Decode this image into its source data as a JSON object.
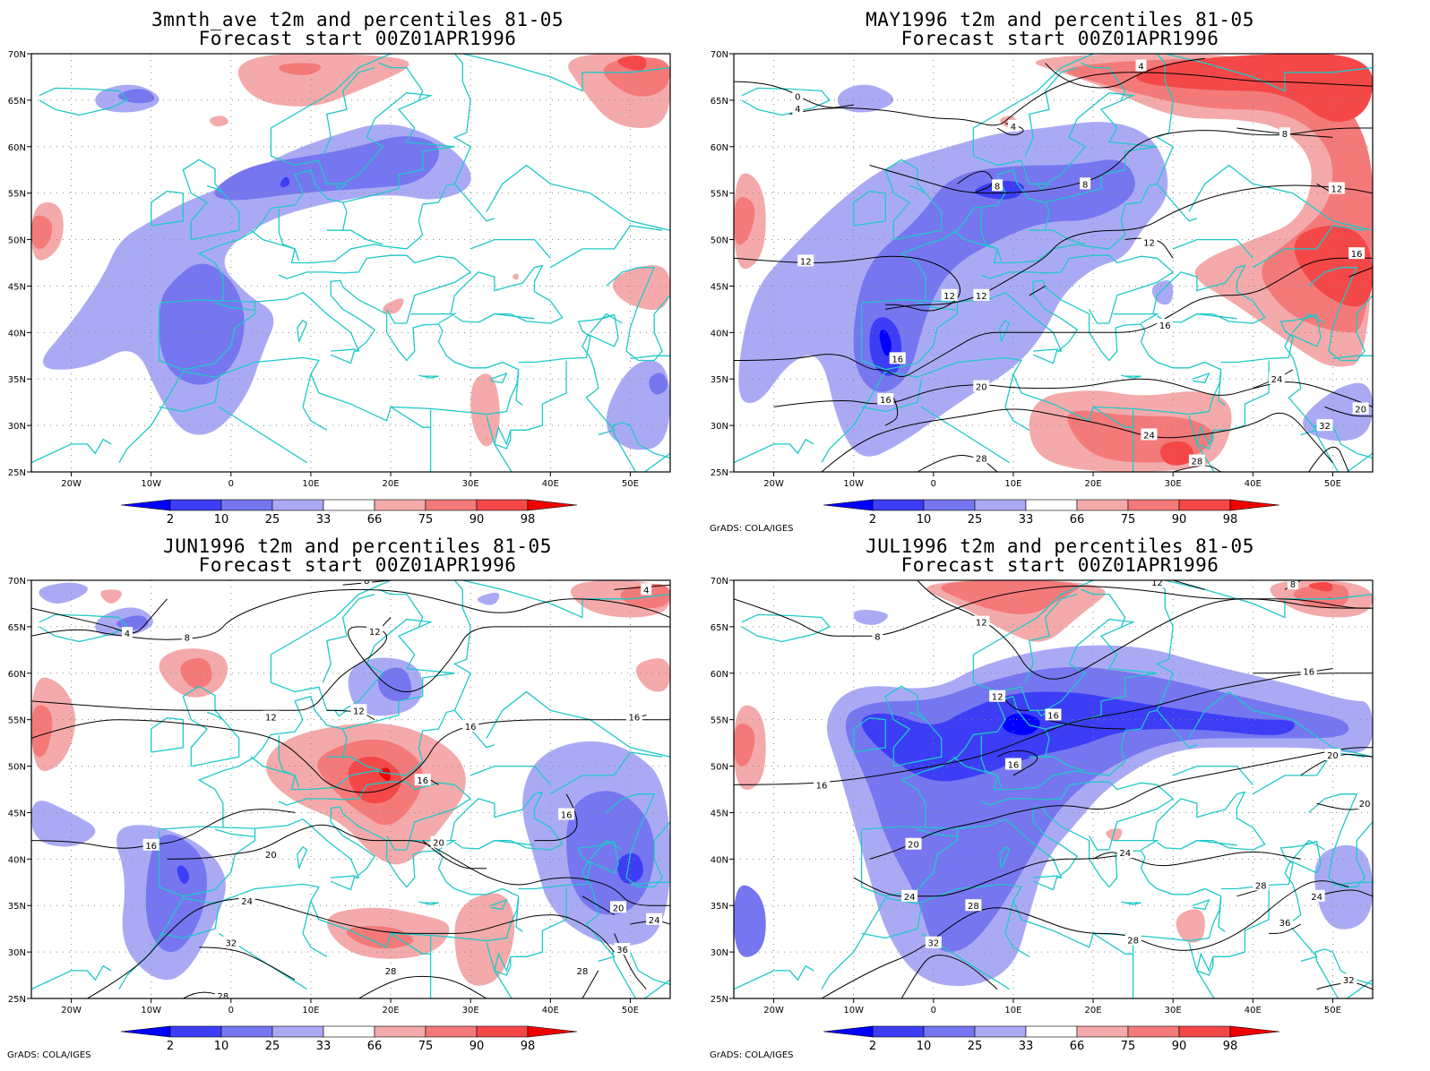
{
  "colors": {
    "blue_2": "#0000ff",
    "blue_10": "#3d3df5",
    "blue_25": "#7676f0",
    "blue_33": "#aaaaf4",
    "red_66": "#f4aaaa",
    "red_75": "#f47a7a",
    "red_90": "#f44848",
    "red_98": "#f00000",
    "coast": "#1fc8c8",
    "contour": "#000000"
  },
  "colorbar": {
    "labels": [
      "2",
      "10",
      "25",
      "33",
      "66",
      "75",
      "90",
      "98"
    ]
  },
  "axes": {
    "x_ticks": [
      "20W",
      "10W",
      "0",
      "10E",
      "20E",
      "30E",
      "40E",
      "50E"
    ],
    "y_ticks": [
      "70N",
      "65N",
      "60N",
      "55N",
      "50N",
      "45N",
      "40N",
      "35N",
      "30N",
      "25N"
    ]
  },
  "panels": [
    {
      "id": "p1",
      "title_line1": "3mnth_ave t2m and percentiles 81-05",
      "title_line2": "Forecast start 00Z01APR1996",
      "credit": "",
      "contour_labels": []
    },
    {
      "id": "p2",
      "title_line1": "MAY1996 t2m and percentiles 81-05",
      "title_line2": "Forecast start 00Z01APR1996",
      "credit": "GrADS: COLA/IGES",
      "contour_labels": [
        "0",
        "4",
        "4",
        "4",
        "8",
        "8",
        "8",
        "12",
        "12",
        "12",
        "12",
        "12",
        "16",
        "16",
        "16",
        "16",
        "20",
        "20",
        "24",
        "24",
        "28",
        "28",
        "32"
      ]
    },
    {
      "id": "p3",
      "title_line1": "JUN1996 t2m and percentiles 81-05",
      "title_line2": "Forecast start 00Z01APR1996",
      "credit": "GrADS: COLA/IGES",
      "contour_labels": [
        "4",
        "4",
        "8",
        "8",
        "12",
        "12",
        "12",
        "16",
        "16",
        "16",
        "16",
        "16",
        "20",
        "20",
        "20",
        "24",
        "24",
        "28",
        "28",
        "28",
        "32",
        "36"
      ]
    },
    {
      "id": "p4",
      "title_line1": "JUL1996 t2m and percentiles 81-05",
      "title_line2": "Forecast start 00Z01APR1996",
      "credit": "GrADS: COLA/IGES",
      "contour_labels": [
        "8",
        "8",
        "12",
        "12",
        "12",
        "16",
        "16",
        "16",
        "16",
        "20",
        "20",
        "20",
        "24",
        "24",
        "24",
        "28",
        "28",
        "28",
        "32",
        "32",
        "36"
      ]
    }
  ]
}
